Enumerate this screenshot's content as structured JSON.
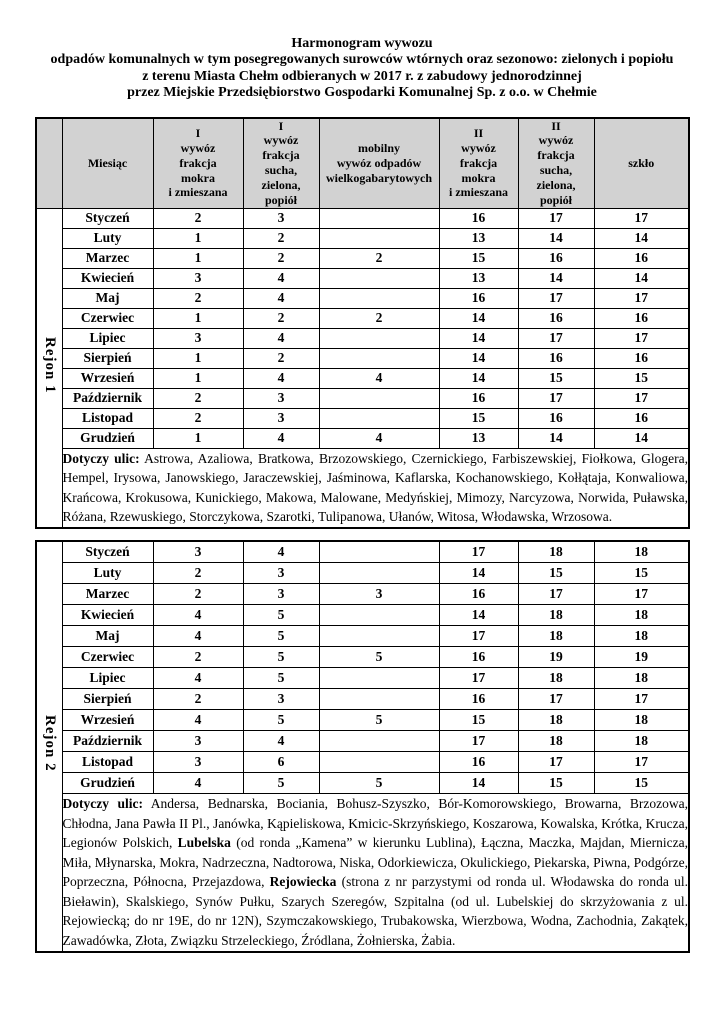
{
  "title": {
    "lines": [
      "Harmonogram wywozu",
      "odpadów komunalnych w tym posegregowanych surowców wtórnych oraz sezonowo: zielonych i popiołu",
      "z terenu Miasta Chełm odbieranych w 2017 r. z zabudowy jednorodzinnej",
      "przez Miejskie Przedsiębiorstwo Gospodarki Komunalnej Sp. z o.o. w Chełmie"
    ]
  },
  "header": {
    "cells": [
      "",
      "Miesiąc",
      "I\nwywóz\nfrakcja\nmokra\ni zmieszana",
      "I\nwywóz\nfrakcja\nsucha,\nzielona,\npopiół",
      "mobilny\nwywóz odpadów\nwielkogabarytowych",
      "II\nwywóz\nfrakcja\nmokra\ni zmieszana",
      "II\nwywóz\nfrakcja\nsucha,\nzielona,\npopiół",
      "szkło"
    ]
  },
  "regions": [
    {
      "label": "Rejon 1",
      "rows": [
        {
          "month": "Styczeń",
          "values": [
            "2",
            "3",
            "",
            "16",
            "17",
            "17"
          ]
        },
        {
          "month": "Luty",
          "values": [
            "1",
            "2",
            "",
            "13",
            "14",
            "14"
          ]
        },
        {
          "month": "Marzec",
          "values": [
            "1",
            "2",
            "2",
            "15",
            "16",
            "16"
          ]
        },
        {
          "month": "Kwiecień",
          "values": [
            "3",
            "4",
            "",
            "13",
            "14",
            "14"
          ]
        },
        {
          "month": "Maj",
          "values": [
            "2",
            "4",
            "",
            "16",
            "17",
            "17"
          ]
        },
        {
          "month": "Czerwiec",
          "values": [
            "1",
            "2",
            "2",
            "14",
            "16",
            "16"
          ]
        },
        {
          "month": "Lipiec",
          "values": [
            "3",
            "4",
            "",
            "14",
            "17",
            "17"
          ]
        },
        {
          "month": "Sierpień",
          "values": [
            "1",
            "2",
            "",
            "14",
            "16",
            "16"
          ]
        },
        {
          "month": "Wrzesień",
          "values": [
            "1",
            "4",
            "4",
            "14",
            "15",
            "15"
          ]
        },
        {
          "month": "Październik",
          "values": [
            "2",
            "3",
            "",
            "16",
            "17",
            "17"
          ]
        },
        {
          "month": "Listopad",
          "values": [
            "2",
            "3",
            "",
            "15",
            "16",
            "16"
          ]
        },
        {
          "month": "Grudzień",
          "values": [
            "1",
            "4",
            "4",
            "13",
            "14",
            "14"
          ]
        }
      ],
      "streets": [
        {
          "text": "Dotyczy ulic:",
          "bold": true
        },
        {
          "text": " Astrowa, Azaliowa, Bratkowa, Brzozowskiego, Czernickiego, Farbiszewskiej, Fiołkowa, Glogera, Hempel, Irysowa, Janowskiego, Jaraczewskiej, Jaśminowa, Kaflarska, Kochanowskiego, Kołłątaja, Konwaliowa, Krańcowa, Krokusowa, Kunickiego, Makowa, Malowane, Medyńskiej, Mimozy, Narcyzowa, Norwida, Puławska, Różana, Rzewuskiego, Storczykowa, Szarotki, Tulipanowa, Ułanów, Witosa, Włodawska, Wrzosowa.",
          "bold": false
        }
      ]
    },
    {
      "label": "Rejon 2",
      "rows": [
        {
          "month": "Styczeń",
          "values": [
            "3",
            "4",
            "",
            "17",
            "18",
            "18"
          ]
        },
        {
          "month": "Luty",
          "values": [
            "2",
            "3",
            "",
            "14",
            "15",
            "15"
          ]
        },
        {
          "month": "Marzec",
          "values": [
            "2",
            "3",
            "3",
            "16",
            "17",
            "17"
          ]
        },
        {
          "month": "Kwiecień",
          "values": [
            "4",
            "5",
            "",
            "14",
            "18",
            "18"
          ]
        },
        {
          "month": "Maj",
          "values": [
            "4",
            "5",
            "",
            "17",
            "18",
            "18"
          ]
        },
        {
          "month": "Czerwiec",
          "values": [
            "2",
            "5",
            "5",
            "16",
            "19",
            "19"
          ]
        },
        {
          "month": "Lipiec",
          "values": [
            "4",
            "5",
            "",
            "17",
            "18",
            "18"
          ]
        },
        {
          "month": "Sierpień",
          "values": [
            "2",
            "3",
            "",
            "16",
            "17",
            "17"
          ]
        },
        {
          "month": "Wrzesień",
          "values": [
            "4",
            "5",
            "5",
            "15",
            "18",
            "18"
          ]
        },
        {
          "month": "Październik",
          "values": [
            "3",
            "4",
            "",
            "17",
            "18",
            "18"
          ]
        },
        {
          "month": "Listopad",
          "values": [
            "3",
            "6",
            "",
            "16",
            "17",
            "17"
          ]
        },
        {
          "month": "Grudzień",
          "values": [
            "4",
            "5",
            "5",
            "14",
            "15",
            "15"
          ]
        }
      ],
      "streets": [
        {
          "text": "Dotyczy ulic:",
          "bold": true
        },
        {
          "text": " Andersa, Bednarska, Bociania, Bohusz-Szyszko, Bór-Komorowskiego, Browarna, Brzozowa, Chłodna, Jana Pawła II Pl., Janówka, Kąpieliskowa, Kmicic-Skrzyńskiego, Koszarowa, Kowalska, Krótka, Krucza, Legionów Polskich, ",
          "bold": false
        },
        {
          "text": "Lubelska",
          "bold": true
        },
        {
          "text": " (od ronda „Kamena” w kierunku Lublina), Łączna, Maczka, Majdan, Miernicza, Miła, Młynarska, Mokra, Nadrzeczna, Nadtorowa, Niska, Odorkiewicza, Okulickiego, Piekarska, Piwna, Podgórze, Poprzeczna, Północna, Przejazdowa, ",
          "bold": false
        },
        {
          "text": "Rejowiecka",
          "bold": true
        },
        {
          "text": " (strona z nr parzystymi od ronda ul. Włodawska do ronda ul. Bieławin), Skalskiego, Synów Pułku, Szarych Szeregów, Szpitalna (od ul. Lubelskiej do skrzyżowania z ul. Rejowiecką; do nr 19E, do nr 12N), Szymczakowskiego, Trubakowska, Wierzbowa, Wodna, Zachodnia, Zakątek, Zawadówka, Złota, Związku Strzeleckiego, Źródlana, Żołnierska, Żabia.",
          "bold": false
        }
      ]
    }
  ],
  "colors": {
    "page_bg": "#ffffff",
    "header_bg": "#d2d2d2",
    "border": "#000000",
    "text": "#000000"
  }
}
